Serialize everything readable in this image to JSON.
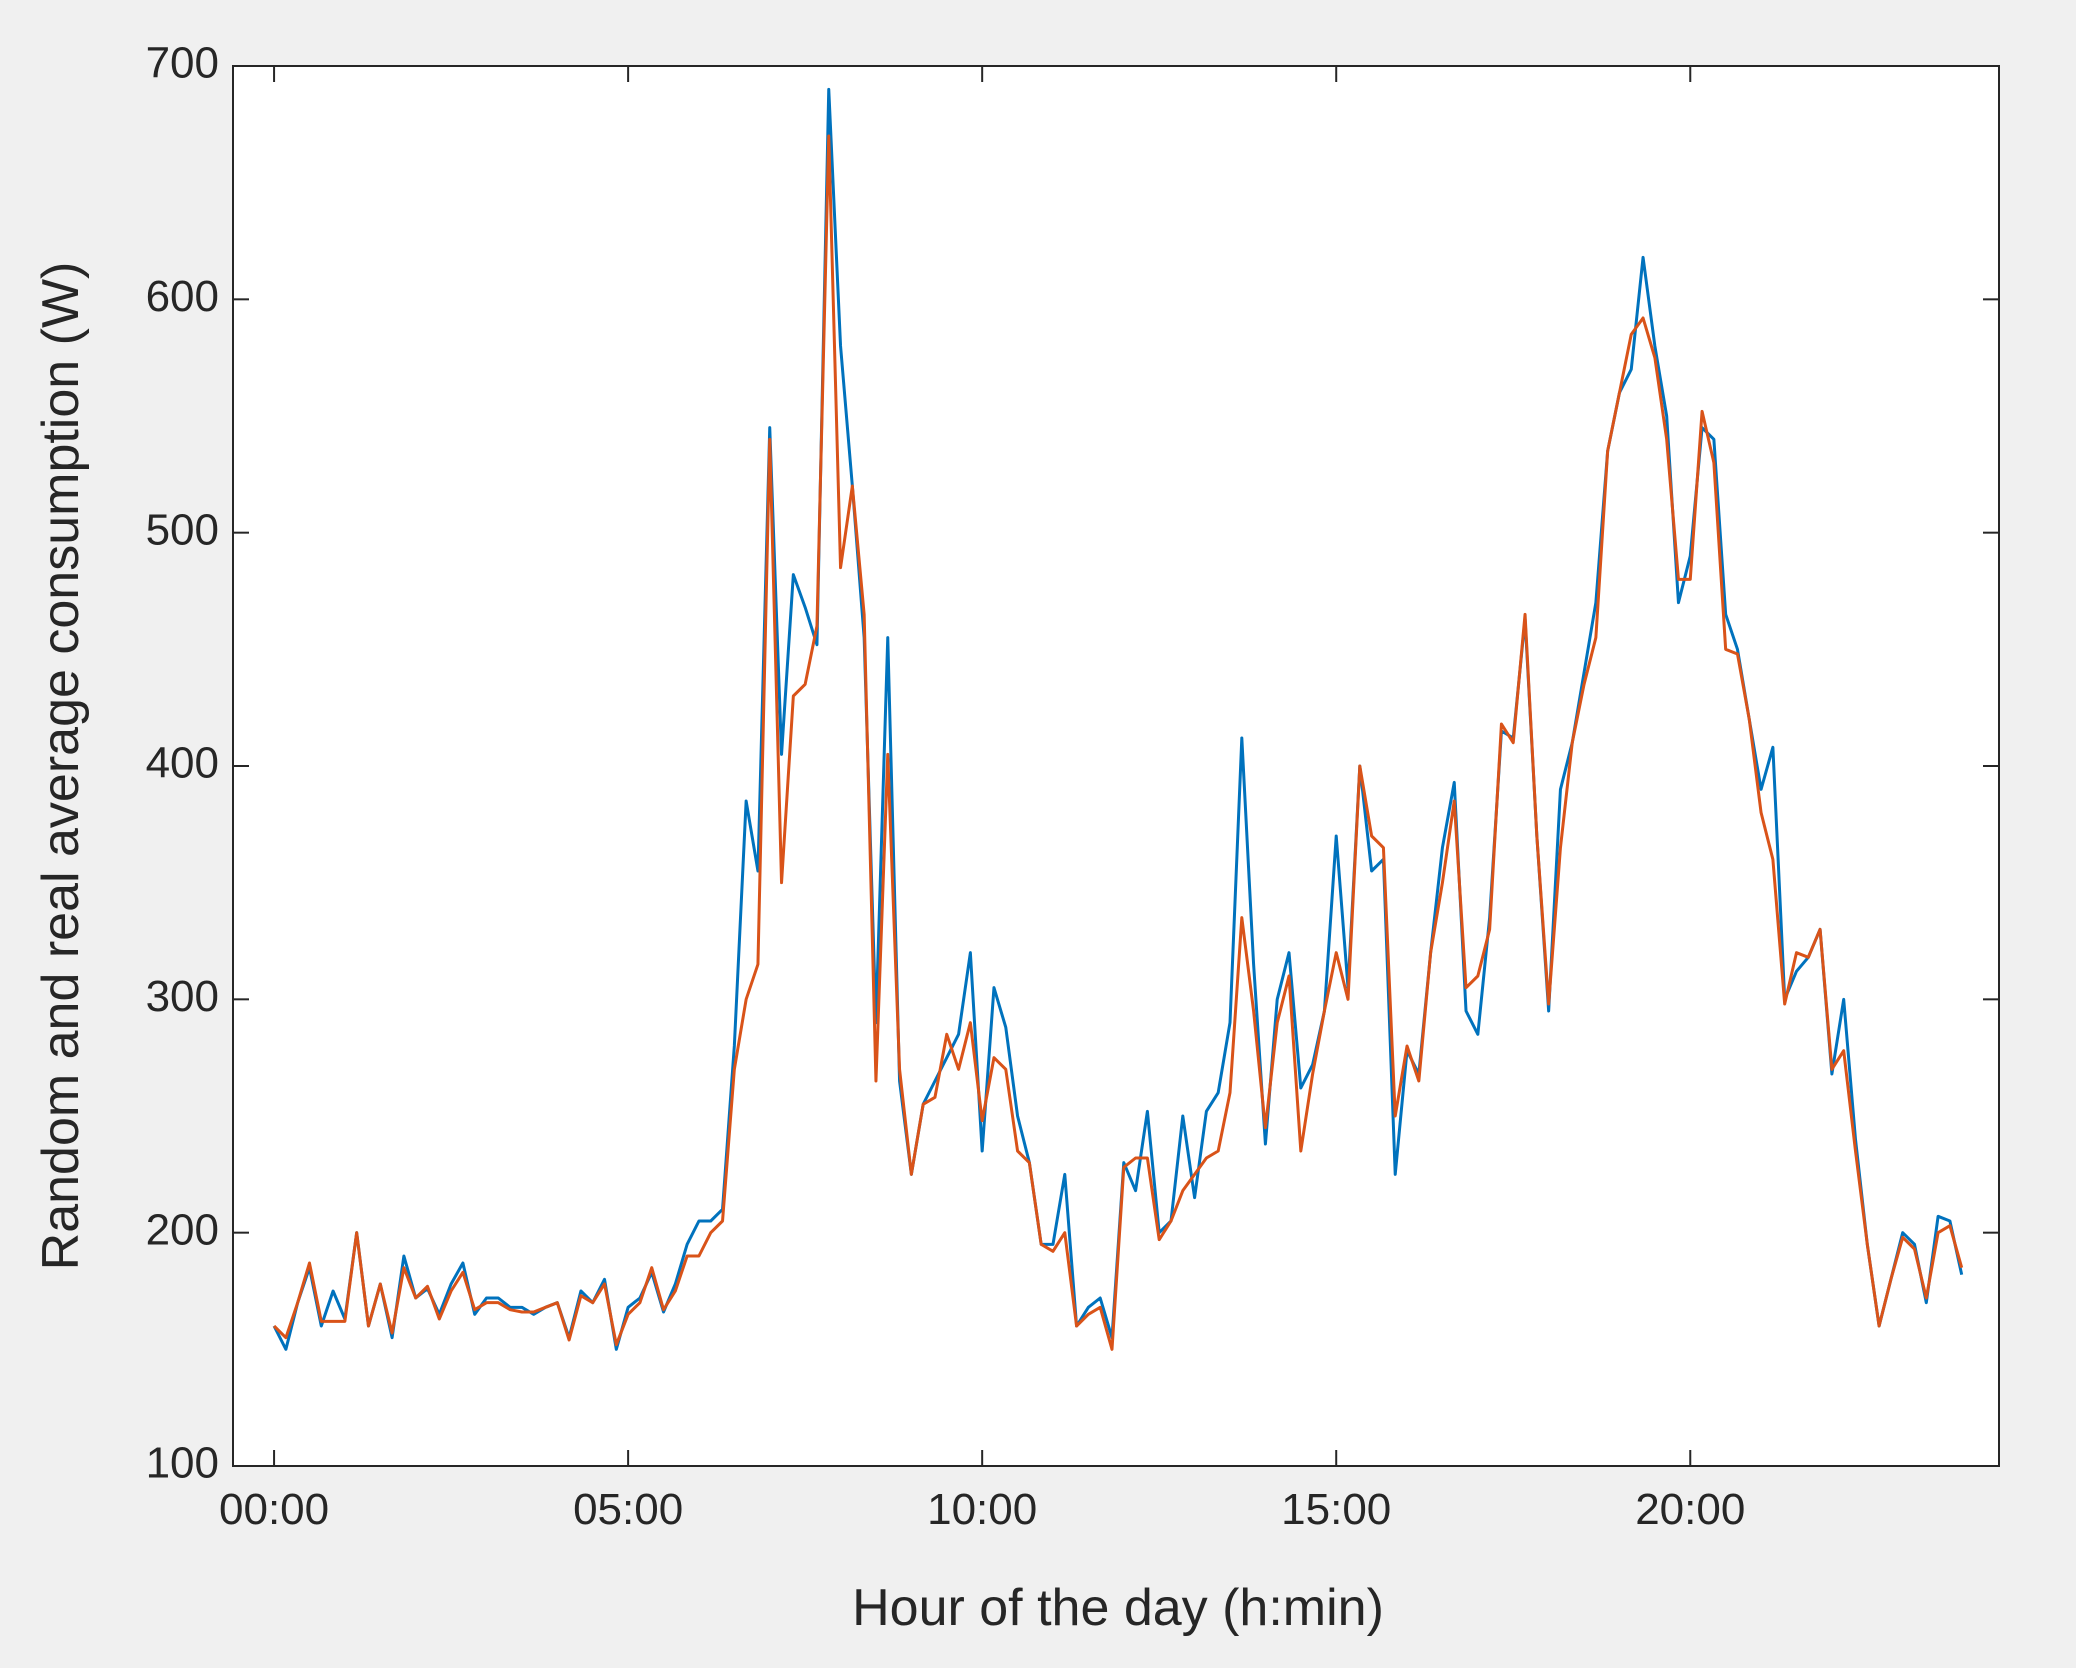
{
  "chart_data": {
    "type": "line",
    "xlabel": "Hour of the day (h:min)",
    "ylabel": "Random and real average consumption (W)",
    "x": [
      0,
      0.1667,
      0.3333,
      0.5,
      0.6667,
      0.8333,
      1,
      1.1667,
      1.3333,
      1.5,
      1.6667,
      1.8333,
      2,
      2.1667,
      2.3333,
      2.5,
      2.6667,
      2.8333,
      3,
      3.1667,
      3.3333,
      3.5,
      3.6667,
      3.8333,
      4,
      4.1667,
      4.3333,
      4.5,
      4.6667,
      4.8333,
      5,
      5.1667,
      5.3333,
      5.5,
      5.6667,
      5.8333,
      6,
      6.1667,
      6.3333,
      6.5,
      6.6667,
      6.8333,
      7,
      7.1667,
      7.3333,
      7.5,
      7.6667,
      7.8333,
      8,
      8.1667,
      8.3333,
      8.5,
      8.6667,
      8.8333,
      9,
      9.1667,
      9.3333,
      9.5,
      9.6667,
      9.8333,
      10,
      10.1667,
      10.3333,
      10.5,
      10.6667,
      10.8333,
      11,
      11.1667,
      11.3333,
      11.5,
      11.6667,
      11.8333,
      12,
      12.1667,
      12.3333,
      12.5,
      12.6667,
      12.8333,
      13,
      13.1667,
      13.3333,
      13.5,
      13.6667,
      13.8333,
      14,
      14.1667,
      14.3333,
      14.5,
      14.6667,
      14.8333,
      15,
      15.1667,
      15.3333,
      15.5,
      15.6667,
      15.8333,
      16,
      16.1667,
      16.3333,
      16.5,
      16.6667,
      16.8333,
      17,
      17.1667,
      17.3333,
      17.5,
      17.6667,
      17.8333,
      18,
      18.1667,
      18.3333,
      18.5,
      18.6667,
      18.8333,
      19,
      19.1667,
      19.3333,
      19.5,
      19.6667,
      19.8333,
      20,
      20.1667,
      20.3333,
      20.5,
      20.6667,
      20.8333,
      21,
      21.1667,
      21.3333,
      21.5,
      21.6667,
      21.8333,
      22,
      22.1667,
      22.3333,
      22.5,
      22.6667,
      22.8333,
      23,
      23.1667,
      23.3333,
      23.5,
      23.6667,
      23.8333
    ],
    "series": [
      {
        "color": "#0072bd",
        "values": [
          160,
          150,
          170,
          185,
          160,
          175,
          163,
          200,
          160,
          178,
          155,
          190,
          172,
          176,
          165,
          178,
          187,
          165,
          172,
          172,
          168,
          168,
          165,
          168,
          170,
          155,
          175,
          170,
          180,
          150,
          168,
          172,
          183,
          166,
          178,
          195,
          205,
          205,
          210,
          280,
          385,
          355,
          545,
          405,
          482,
          468,
          452,
          690,
          580,
          520,
          455,
          290,
          455,
          265,
          225,
          255,
          265,
          275,
          285,
          320,
          235,
          305,
          288,
          250,
          230,
          195,
          195,
          225,
          160,
          168,
          172,
          155,
          230,
          218,
          252,
          200,
          205,
          250,
          215,
          252,
          260,
          290,
          412,
          315,
          238,
          300,
          320,
          262,
          272,
          295,
          370,
          305,
          400,
          355,
          360,
          225,
          278,
          268,
          320,
          365,
          393,
          295,
          285,
          335,
          415,
          412,
          463,
          370,
          295,
          390,
          410,
          440,
          470,
          535,
          560,
          570,
          618,
          580,
          550,
          470,
          490,
          545,
          540,
          465,
          450,
          420,
          390,
          408,
          300,
          312,
          318,
          330,
          268,
          300,
          240,
          195,
          160,
          180,
          200,
          195,
          170,
          207,
          205,
          182
        ]
      },
      {
        "color": "#d95319",
        "values": [
          160,
          155,
          170,
          187,
          162,
          162,
          162,
          200,
          160,
          178,
          157,
          185,
          172,
          177,
          163,
          175,
          183,
          167,
          170,
          170,
          167,
          166,
          166,
          168,
          170,
          154,
          173,
          170,
          178,
          152,
          165,
          170,
          185,
          167,
          175,
          190,
          190,
          200,
          205,
          270,
          300,
          315,
          540,
          350,
          430,
          435,
          460,
          670,
          485,
          520,
          465,
          265,
          405,
          270,
          225,
          255,
          258,
          285,
          270,
          290,
          248,
          275,
          270,
          235,
          230,
          195,
          192,
          200,
          160,
          165,
          168,
          150,
          228,
          232,
          232,
          197,
          205,
          218,
          225,
          232,
          235,
          260,
          335,
          295,
          245,
          290,
          310,
          235,
          268,
          295,
          320,
          300,
          400,
          370,
          365,
          250,
          280,
          265,
          320,
          350,
          385,
          305,
          310,
          330,
          418,
          410,
          465,
          370,
          298,
          365,
          410,
          435,
          455,
          535,
          560,
          585,
          592,
          575,
          540,
          480,
          480,
          552,
          530,
          450,
          448,
          420,
          380,
          360,
          298,
          320,
          318,
          330,
          270,
          278,
          235,
          195,
          160,
          180,
          198,
          193,
          172,
          200,
          203,
          185
        ]
      }
    ],
    "xlim": [
      -0.58,
      24.36
    ],
    "xticks": [
      {
        "value": 0,
        "label": "00:00"
      },
      {
        "value": 5,
        "label": "05:00"
      },
      {
        "value": 10,
        "label": "10:00"
      },
      {
        "value": 15,
        "label": "15:00"
      },
      {
        "value": 20,
        "label": "20:00"
      }
    ],
    "ylim": [
      100,
      700
    ],
    "yticks": [
      100,
      200,
      300,
      400,
      500,
      600,
      700
    ]
  }
}
